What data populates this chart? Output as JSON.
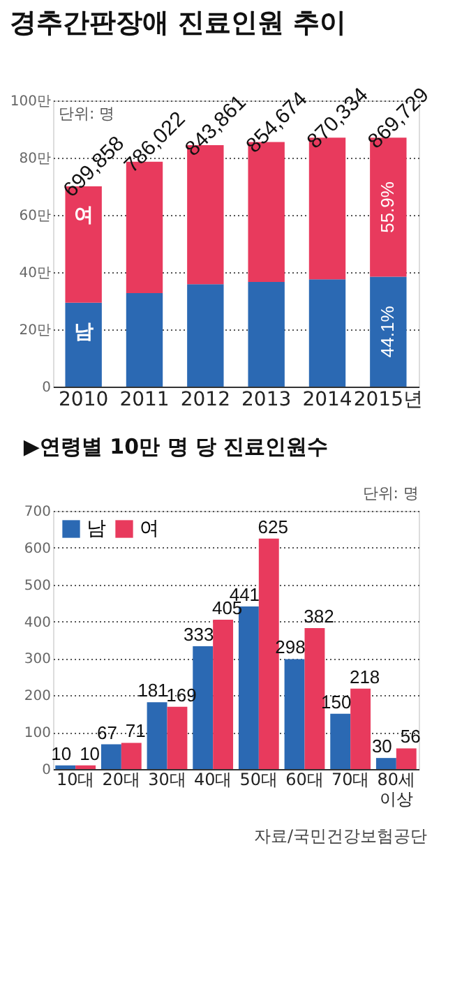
{
  "chart_data": [
    {
      "type": "bar",
      "title": "경추간판장애 진료인원 추이",
      "categories": [
        "2010",
        "2011",
        "2012",
        "2013",
        "2014",
        "2015년"
      ],
      "stacked": true,
      "series": [
        {
          "name": "남",
          "color": "#2b69b3",
          "values": [
            29.3,
            32.7,
            35.8,
            36.6,
            37.5,
            38.4
          ]
        },
        {
          "name": "여",
          "color": "#e83a5d",
          "values": [
            40.7,
            45.9,
            48.6,
            48.9,
            49.5,
            48.6
          ]
        }
      ],
      "ylim": [
        0,
        100
      ],
      "yticks": [
        0,
        {
          "value": 20,
          "label": "20만"
        },
        {
          "value": 40,
          "label": "40만"
        },
        {
          "value": 60,
          "label": "60만"
        },
        {
          "value": 80,
          "label": "80만"
        },
        {
          "value": 100,
          "label": "100만"
        }
      ],
      "grid": "y",
      "legend": false,
      "annotations": [
        "단위: 명",
        "44.1%",
        "55.9%",
        {
          "text": "699,858",
          "x": "2010",
          "y": 70.0
        },
        {
          "text": "786,022",
          "x": "2011",
          "y": 78.6
        },
        {
          "text": "843,861",
          "x": "2012",
          "y": 84.4
        },
        {
          "text": "854,674",
          "x": "2013",
          "y": 85.5
        },
        {
          "text": "870,334",
          "x": "2014",
          "y": 87.0
        },
        {
          "text": "869,729",
          "x": "2015년",
          "y": 87.0
        }
      ]
    },
    {
      "type": "bar",
      "title": "▶연령별 10만 명 당 진료인원수",
      "categories": [
        "10대",
        "20대",
        "30대",
        "40대",
        "50대",
        "60대",
        "70대",
        "80세 이상"
      ],
      "series": [
        {
          "name": "남",
          "color": "#2b69b3",
          "values": [
            10,
            67,
            181,
            333,
            441,
            298,
            150,
            30
          ]
        },
        {
          "name": "여",
          "color": "#e83a5d",
          "values": [
            10,
            71,
            169,
            405,
            625,
            382,
            218,
            56
          ]
        }
      ],
      "data_labels": true,
      "ylim": [
        0,
        700
      ],
      "yticks": [
        0,
        100,
        200,
        300,
        400,
        500,
        600,
        700
      ],
      "grid": "y",
      "legend": "top left",
      "annotations": [
        "단위: 명",
        "자료/국민건강보험공단"
      ]
    }
  ]
}
